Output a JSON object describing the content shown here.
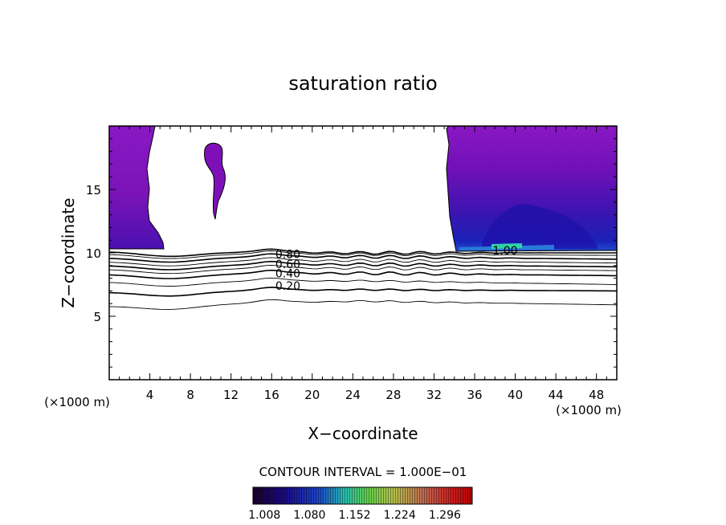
{
  "chart_data": {
    "type": "contour",
    "title": "saturation ratio",
    "xlabel": "X−coordinate",
    "ylabel": "Z−coordinate",
    "x_unit_left": "(×1000 m)",
    "x_unit_right": "(×1000 m)",
    "xlim": [
      0,
      50
    ],
    "ylim": [
      0,
      20
    ],
    "x_ticks": [
      4,
      8,
      12,
      16,
      20,
      24,
      28,
      32,
      36,
      40,
      44,
      48
    ],
    "x_tick_labels": [
      "4",
      "8",
      "12",
      "16",
      "20",
      "24",
      "28",
      "32",
      "36",
      "40",
      "44",
      "48"
    ],
    "y_ticks": [
      5,
      10,
      15
    ],
    "y_tick_labels": [
      "5",
      "10",
      "15"
    ],
    "contour_interval_text": "CONTOUR INTERVAL = 1.000E−01",
    "contour_labels": [
      {
        "text": "0.20",
        "x": 17.6,
        "z": 7.4
      },
      {
        "text": "0.40",
        "x": 17.6,
        "z": 8.4
      },
      {
        "text": "0.60",
        "x": 17.6,
        "z": 9.1
      },
      {
        "text": "0.80",
        "x": 17.6,
        "z": 9.9
      },
      {
        "text": "1.00",
        "x": 39.0,
        "z": 10.2
      }
    ],
    "contour_levels": [
      {
        "z_left": 5.8,
        "z_mid": 6.2,
        "z_right": 5.9
      },
      {
        "z_left": 6.9,
        "z_mid": 7.1,
        "z_right": 7.0
      },
      {
        "z_left": 7.7,
        "z_mid": 7.8,
        "z_right": 7.5
      },
      {
        "z_left": 8.3,
        "z_mid": 8.4,
        "z_right": 8.2
      },
      {
        "z_left": 8.7,
        "z_mid": 8.8,
        "z_right": 8.6
      },
      {
        "z_left": 9.0,
        "z_mid": 9.1,
        "z_right": 8.9
      },
      {
        "z_left": 9.3,
        "z_mid": 9.4,
        "z_right": 9.2
      },
      {
        "z_left": 9.6,
        "z_mid": 9.7,
        "z_right": 9.5
      },
      {
        "z_left": 9.9,
        "z_mid": 9.9,
        "z_right": 9.8
      },
      {
        "z_left": 10.1,
        "z_mid": 10.0,
        "z_right": 10.0
      }
    ],
    "colorbar": {
      "min": 1.0,
      "max": 1.35,
      "tick_labels": [
        "1.008",
        "1.080",
        "1.152",
        "1.224",
        "1.296"
      ],
      "colors": [
        "#1a0028",
        "#1c0a8a",
        "#1a45c8",
        "#29c0b0",
        "#5fd04a",
        "#b6c04a",
        "#c06850",
        "#cc2020",
        "#c00000"
      ]
    },
    "shaded_regions": [
      {
        "name": "left-supersaturated-column",
        "color": "#7f10b8",
        "x_range": [
          0,
          5.4
        ],
        "z_range": [
          10.3,
          20
        ]
      },
      {
        "name": "small-supersaturated-blob",
        "color": "#7f10b8",
        "x_range": [
          9.2,
          11.6
        ],
        "z_range": [
          12.6,
          18.6
        ]
      },
      {
        "name": "right-supersaturated-column",
        "color": "#7f10b8",
        "x_range": [
          33.4,
          50
        ],
        "z_range": [
          10.2,
          20
        ]
      }
    ]
  }
}
